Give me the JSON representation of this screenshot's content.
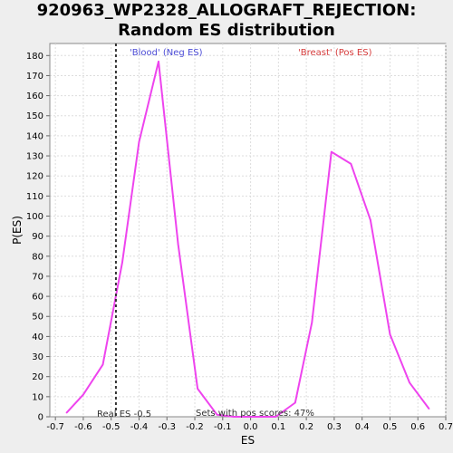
{
  "chart_data": {
    "type": "line",
    "title": "920963_WP2328_ALLOGRAFT_REJECTION: Random ES distribution",
    "xlabel": "ES",
    "ylabel": "P(ES)",
    "xlim": [
      -0.72,
      0.7
    ],
    "ylim": [
      0,
      186
    ],
    "xticks": [
      -0.7,
      -0.6,
      -0.5,
      -0.4,
      -0.3,
      -0.2,
      -0.1,
      0.0,
      0.1,
      0.2,
      0.3,
      0.4,
      0.5,
      0.6,
      0.7
    ],
    "xtick_labels": [
      "-0.7",
      "-0.6",
      "-0.5",
      "-0.4",
      "-0.3",
      "-0.2",
      "-0.1",
      "0.0",
      "0.1",
      "0.2",
      "0.3",
      "0.4",
      "0.5",
      "0.6",
      "0.7"
    ],
    "yticks": [
      0,
      10,
      20,
      30,
      40,
      50,
      60,
      70,
      80,
      90,
      100,
      110,
      120,
      130,
      140,
      150,
      160,
      170,
      180
    ],
    "grid": true,
    "series": [
      {
        "color": "#ee44ee",
        "x": [
          -0.66,
          -0.6,
          -0.53,
          -0.46,
          -0.4,
          -0.33,
          -0.26,
          -0.19,
          -0.12,
          -0.06,
          0.02,
          0.09,
          0.16,
          0.22,
          0.29,
          0.36,
          0.43,
          0.5,
          0.57,
          0.64
        ],
        "y": [
          2,
          11,
          26,
          77,
          137,
          177,
          86,
          14,
          1,
          0,
          0,
          0,
          7,
          47,
          132,
          126,
          98,
          41,
          17,
          4
        ]
      }
    ],
    "real_es": -0.483,
    "annotations": {
      "neg_label": "'Blood' (Neg ES)",
      "pos_label": "'Breast' (Pos ES)",
      "real_es_label": "Real ES -0.5",
      "pos_scores_label": "Sets with pos scores: 47%"
    },
    "colors": {
      "neg": "#4b4bd6",
      "pos": "#d63b3b",
      "line": "#ee44ee",
      "real_es_line": "#333333"
    }
  }
}
